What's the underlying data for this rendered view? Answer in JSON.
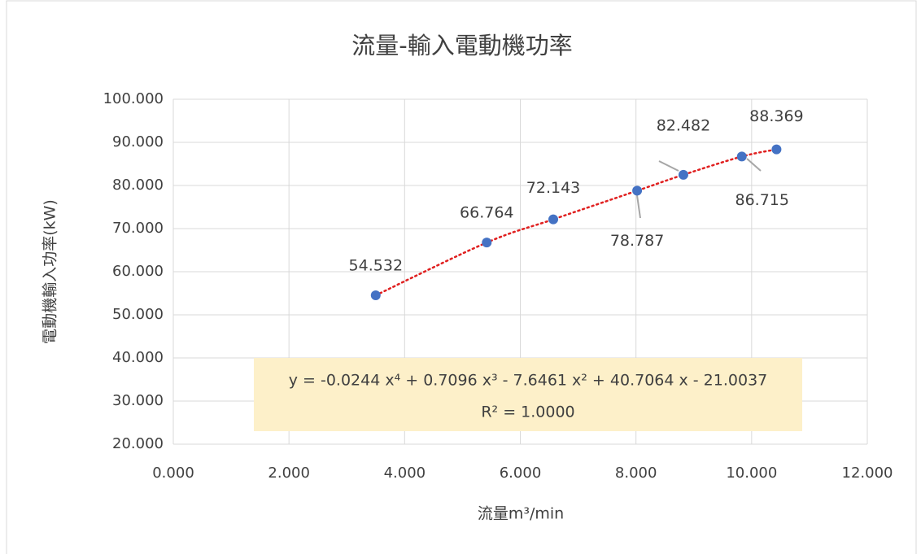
{
  "chart_data": {
    "type": "scatter",
    "title": "流量-輸入電動機功率",
    "x_label": "流量m³/min",
    "y_label": "電動機輸入功率(kW)",
    "x": [
      3.5,
      5.42,
      6.57,
      8.02,
      8.82,
      9.83,
      10.43
    ],
    "series": [
      {
        "color": "#4472c4",
        "values": [
          54.532,
          66.764,
          72.143,
          78.787,
          82.482,
          86.715,
          88.369
        ]
      }
    ],
    "trendline": {
      "color": "#e02020",
      "equation": "y = -0.0244 x⁴ + 0.7096 x³ - 7.6461 x² + 40.7064 x - 21.0037",
      "r_squared": "R² = 1.0000"
    },
    "xlim": [
      0,
      12
    ],
    "xticks": [
      {
        "value": 0,
        "label": "0.000"
      },
      {
        "value": 2,
        "label": "2.000"
      },
      {
        "value": 4,
        "label": "4.000"
      },
      {
        "value": 6,
        "label": "6.000"
      },
      {
        "value": 8,
        "label": "8.000"
      },
      {
        "value": 10,
        "label": "10.000"
      },
      {
        "value": 12,
        "label": "12.000"
      }
    ],
    "ylim": [
      20,
      100
    ],
    "yticks": [
      {
        "value": 20,
        "label": "20.000"
      },
      {
        "value": 30,
        "label": "30.000"
      },
      {
        "value": 40,
        "label": "40.000"
      },
      {
        "value": 50,
        "label": "50.000"
      },
      {
        "value": 60,
        "label": "60.000"
      },
      {
        "value": 70,
        "label": "70.000"
      },
      {
        "value": 80,
        "label": "80.000"
      },
      {
        "value": 90,
        "label": "90.000"
      },
      {
        "value": 100,
        "label": "100.000"
      }
    ],
    "grid": true
  }
}
